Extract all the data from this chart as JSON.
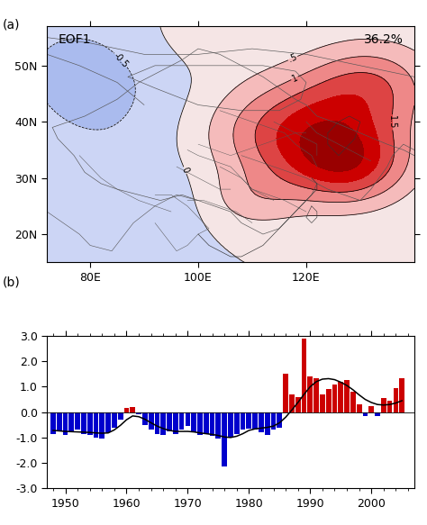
{
  "title_a": "EOF1",
  "variance": "36.2%",
  "panel_a_label": "(a)",
  "panel_b_label": "(b)",
  "map_lon_min": 72,
  "map_lon_max": 140,
  "map_lat_min": 15,
  "map_lat_max": 57,
  "map_xticks": [
    80,
    100,
    120
  ],
  "map_xtick_labels": [
    "80E",
    "100E",
    "120E"
  ],
  "map_yticks": [
    20,
    30,
    40,
    50
  ],
  "map_ytick_labels": [
    "20N",
    "30N",
    "40N",
    "50N"
  ],
  "fill_levels": [
    -2.5,
    -2.0,
    -1.5,
    -1.0,
    -0.5,
    0.0,
    0.5,
    1.0,
    1.5,
    2.0,
    2.5,
    3.0
  ],
  "fill_colors": [
    "#3a5fb0",
    "#5577cc",
    "#7799dd",
    "#aabbee",
    "#ccd5f5",
    "#f5e5e5",
    "#f5bbbb",
    "#ee8888",
    "#dd4444",
    "#cc0000",
    "#990000"
  ],
  "contour_line_levels": [
    -0.5,
    0.0,
    0.5,
    1.0,
    1.5
  ],
  "bar_years": [
    1948,
    1949,
    1950,
    1951,
    1952,
    1953,
    1954,
    1955,
    1956,
    1957,
    1958,
    1959,
    1960,
    1961,
    1962,
    1963,
    1964,
    1965,
    1966,
    1967,
    1968,
    1969,
    1970,
    1971,
    1972,
    1973,
    1974,
    1975,
    1976,
    1977,
    1978,
    1979,
    1980,
    1981,
    1982,
    1983,
    1984,
    1985,
    1986,
    1987,
    1988,
    1989,
    1990,
    1991,
    1992,
    1993,
    1994,
    1995,
    1996,
    1997,
    1998,
    1999,
    2000,
    2001,
    2002,
    2003,
    2004,
    2005
  ],
  "bar_values": [
    -0.85,
    -0.75,
    -0.9,
    -0.8,
    -0.7,
    -0.85,
    -0.9,
    -1.0,
    -1.05,
    -0.8,
    -0.6,
    -0.3,
    0.15,
    0.2,
    -0.1,
    -0.5,
    -0.7,
    -0.85,
    -0.9,
    -0.75,
    -0.85,
    -0.7,
    -0.55,
    -0.8,
    -0.9,
    -0.85,
    -0.95,
    -1.05,
    -2.15,
    -1.0,
    -0.85,
    -0.7,
    -0.65,
    -0.7,
    -0.8,
    -0.9,
    -0.7,
    -0.6,
    1.5,
    0.7,
    0.6,
    2.9,
    1.4,
    1.35,
    0.7,
    0.9,
    1.1,
    1.2,
    1.25,
    0.8,
    0.3,
    -0.15,
    0.25,
    -0.15,
    0.55,
    0.45,
    0.95,
    1.35
  ],
  "smooth_values": [
    -0.72,
    -0.74,
    -0.76,
    -0.77,
    -0.78,
    -0.79,
    -0.8,
    -0.82,
    -0.83,
    -0.82,
    -0.7,
    -0.52,
    -0.3,
    -0.15,
    -0.18,
    -0.28,
    -0.42,
    -0.55,
    -0.65,
    -0.72,
    -0.76,
    -0.76,
    -0.76,
    -0.78,
    -0.82,
    -0.85,
    -0.88,
    -0.92,
    -0.98,
    -1.0,
    -0.95,
    -0.85,
    -0.72,
    -0.66,
    -0.63,
    -0.6,
    -0.55,
    -0.42,
    -0.2,
    0.08,
    0.38,
    0.7,
    1.0,
    1.2,
    1.3,
    1.32,
    1.28,
    1.18,
    1.05,
    0.88,
    0.68,
    0.5,
    0.38,
    0.3,
    0.28,
    0.3,
    0.36,
    0.45
  ],
  "bar_ylim": [
    -3.0,
    3.0
  ],
  "bar_yticks": [
    -3.0,
    -2.0,
    -1.0,
    0.0,
    1.0,
    2.0,
    3.0
  ],
  "bar_ytick_labels": [
    "-3.0",
    "-2.0",
    "-1.0",
    "0.0",
    "1.0",
    "2.0",
    "3.0"
  ],
  "bar_xlim": [
    1947,
    2007
  ],
  "bar_xticks": [
    1950,
    1960,
    1970,
    1980,
    1990,
    2000
  ],
  "bar_xtick_labels": [
    "1950",
    "1960",
    "1970",
    "1980",
    "1990",
    "2000"
  ],
  "bar_color_pos": "#cc0000",
  "bar_color_neg": "#0000cc",
  "background_color": "#ffffff",
  "fig_width": 4.74,
  "fig_height": 5.83
}
